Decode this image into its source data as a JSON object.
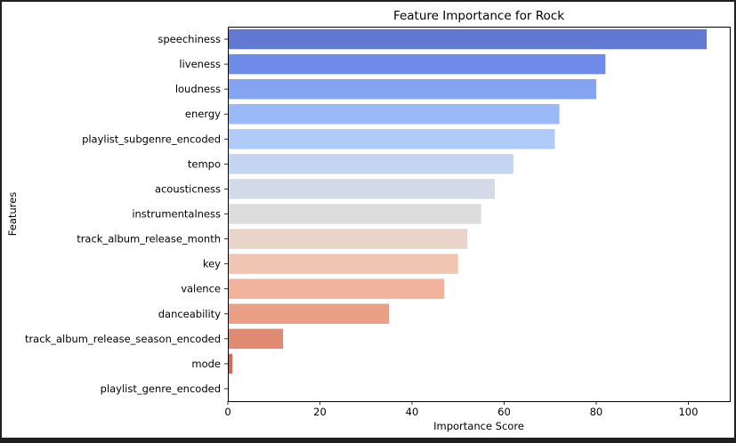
{
  "chart_data": {
    "type": "bar",
    "orientation": "horizontal",
    "title": "Feature Importance for Rock",
    "xlabel": "Importance Score",
    "ylabel": "Features",
    "xlim": [
      0,
      109
    ],
    "xticks": [
      0,
      20,
      40,
      60,
      80,
      100
    ],
    "grid": false,
    "palette": "coolwarm",
    "categories": [
      "speechiness",
      "liveness",
      "loudness",
      "energy",
      "playlist_subgenre_encoded",
      "tempo",
      "acousticness",
      "instrumentalness",
      "track_album_release_month",
      "key",
      "valence",
      "danceability",
      "track_album_release_season_encoded",
      "mode",
      "playlist_genre_encoded"
    ],
    "values": [
      104,
      82,
      80,
      72,
      71,
      62,
      58,
      55,
      52,
      50,
      47,
      35,
      12,
      1,
      0
    ],
    "colors": [
      "#6179d2",
      "#6e8bea",
      "#84a4f1",
      "#9ab9f7",
      "#afccf9",
      "#c3d5f1",
      "#d3dbe8",
      "#dddcdc",
      "#e8d4c8",
      "#efc5b1",
      "#f1b39d",
      "#e9a085",
      "#df8a72",
      "#d26b5a",
      "#c4443f"
    ]
  }
}
